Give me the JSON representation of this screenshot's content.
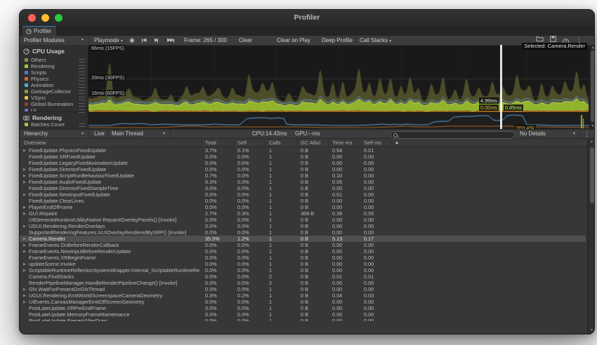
{
  "window": {
    "title": "Profiler"
  },
  "tab": {
    "label": "Profiler"
  },
  "toolbar": {
    "modules_dropdown": "Profiler Modules",
    "target_dropdown": "Playmode",
    "frame_info": "Frame: 265 / 300",
    "clear": "Clear",
    "clear_on_play": "Clear on Play",
    "deep_profile": "Deep Profile",
    "call_stacks": "Call Stacks"
  },
  "modules": {
    "cpu": {
      "title": "CPU Usage",
      "legend": [
        {
          "label": "Others",
          "color": "#8f8f4b"
        },
        {
          "label": "Rendering",
          "color": "#a7c63b"
        },
        {
          "label": "Scripts",
          "color": "#4c7dbf"
        },
        {
          "label": "Physics",
          "color": "#d1682f"
        },
        {
          "label": "Animation",
          "color": "#51aedc"
        },
        {
          "label": "GarbageCollector",
          "color": "#96963f"
        },
        {
          "label": "VSync",
          "color": "#e3c34c"
        },
        {
          "label": "Global Illumination",
          "color": "#9e3c32"
        },
        {
          "label": "UI",
          "color": "#7b68c8"
        }
      ]
    },
    "rendering": {
      "title": "Rendering",
      "legend": [
        {
          "label": "Batches Count",
          "color": "#a7c63b"
        }
      ]
    }
  },
  "chart": {
    "grid_labels": [
      "66ms (15FPS)",
      "33ms (30FPS)",
      "16ms (60FPS)"
    ],
    "selected_label": "Selected: Camera.Render",
    "tooltip_total": "4.99ms",
    "tooltip_left": "0.00ms",
    "tooltip_right": "0.85ms",
    "render_value_label": "959.45k",
    "colors": {
      "others": "#4d4d2a",
      "rendering": "#92b42c",
      "rendering_edge": "#c9dd70",
      "physics": "#a35a24",
      "scripts": "#5fa0d8",
      "selection": "#ffffff"
    }
  },
  "hierarchy_bar": {
    "mode": "Hierarchy",
    "live": "Live",
    "thread": "Main Thread",
    "cpu_time": "CPU:14.43ms",
    "gpu_time": "GPU:--ms",
    "details": "No Details",
    "search_value": ""
  },
  "table": {
    "columns": {
      "overview": "Overview",
      "total": "Total",
      "self": "Self",
      "calls": "Calls",
      "gc": "GC Alloc",
      "time": "Time ms",
      "selfms": "Self ms"
    },
    "rows": [
      {
        "name": "FixedUpdate.PhysicsFixedUpdate",
        "exp": true,
        "total": "3.7%",
        "self": "0.1%",
        "calls": "1",
        "gc": "0 B",
        "time": "0.54",
        "selfms": "0.01"
      },
      {
        "name": "FixedUpdate.XRFixedUpdate",
        "exp": false,
        "total": "0.0%",
        "self": "0.0%",
        "calls": "1",
        "gc": "0 B",
        "time": "0.00",
        "selfms": "0.00"
      },
      {
        "name": "FixedUpdate.LegacyFixedAnimationUpdate",
        "exp": false,
        "total": "0.0%",
        "self": "0.0%",
        "calls": "1",
        "gc": "0 B",
        "time": "0.00",
        "selfms": "0.00"
      },
      {
        "name": "FixedUpdate.DirectorFixedUpdate",
        "exp": true,
        "total": "0.0%",
        "self": "0.0%",
        "calls": "1",
        "gc": "0 B",
        "time": "0.00",
        "selfms": "0.00"
      },
      {
        "name": "FixedUpdate.ScriptRunBehaviourFixedUpdate",
        "exp": true,
        "total": "0.7%",
        "self": "0.0%",
        "calls": "1",
        "gc": "0 B",
        "time": "0.10",
        "selfms": "0.00"
      },
      {
        "name": "FixedUpdate.AudioFixedUpdate",
        "exp": true,
        "total": "0.3%",
        "self": "0.0%",
        "calls": "1",
        "gc": "0 B",
        "time": "0.05",
        "selfms": "0.00"
      },
      {
        "name": "FixedUpdate.DirectorFixedSampleTime",
        "exp": false,
        "total": "0.0%",
        "self": "0.0%",
        "calls": "1",
        "gc": "0 B",
        "time": "0.00",
        "selfms": "0.00"
      },
      {
        "name": "FixedUpdate.NewInputFixedUpdate",
        "exp": true,
        "total": "0.0%",
        "self": "0.0%",
        "calls": "1",
        "gc": "0 B",
        "time": "0.01",
        "selfms": "0.00"
      },
      {
        "name": "FixedUpdate.ClearLines",
        "exp": false,
        "total": "0.0%",
        "self": "0.0%",
        "calls": "1",
        "gc": "0 B",
        "time": "0.00",
        "selfms": "0.00"
      },
      {
        "name": "PlayerEndOfFrame",
        "exp": true,
        "total": "0.0%",
        "self": "0.0%",
        "calls": "1",
        "gc": "0 B",
        "time": "0.00",
        "selfms": "0.00"
      },
      {
        "name": "GUI.Repaint",
        "exp": true,
        "total": "2.7%",
        "self": "0.3%",
        "calls": "1",
        "gc": "368 B",
        "time": "0.39",
        "selfms": "0.05"
      },
      {
        "name": "UIElementsRuntimeUtilityNative.RepaintOverlayPanels() [Invoke]",
        "exp": false,
        "total": "0.0%",
        "self": "0.0%",
        "calls": "1",
        "gc": "0 B",
        "time": "0.00",
        "selfms": "0.00"
      },
      {
        "name": "UGUI.Rendering.RenderOverlays",
        "exp": true,
        "total": "0.0%",
        "self": "0.0%",
        "calls": "1",
        "gc": "0 B",
        "time": "0.00",
        "selfms": "0.00"
      },
      {
        "name": "SupportedRenderingFeatures.IsUIOverlayRenderedBySRP() [Invoke]",
        "exp": false,
        "total": "0.0%",
        "self": "0.0%",
        "calls": "1",
        "gc": "0 B",
        "time": "0.00",
        "selfms": "0.00"
      },
      {
        "name": "Camera.Render",
        "exp": true,
        "selected": true,
        "total": "35.5%",
        "self": "1.2%",
        "calls": "1",
        "gc": "0 B",
        "time": "5.13",
        "selfms": "0.17"
      },
      {
        "name": "FrameEvents.OnBeforeRenderCallback",
        "exp": true,
        "total": "0.0%",
        "self": "0.0%",
        "calls": "1",
        "gc": "0 B",
        "time": "0.00",
        "selfms": "0.00"
      },
      {
        "name": "FrameEvents.NewInputBeforeRenderUpdate",
        "exp": true,
        "total": "0.0%",
        "self": "0.0%",
        "calls": "1",
        "gc": "0 B",
        "time": "0.00",
        "selfms": "0.00"
      },
      {
        "name": "FrameEvents.XRBeginFrame",
        "exp": false,
        "total": "0.0%",
        "self": "0.0%",
        "calls": "1",
        "gc": "0 B",
        "time": "0.00",
        "selfms": "0.00"
      },
      {
        "name": "updateScene.Invoke",
        "exp": true,
        "total": "0.0%",
        "self": "0.0%",
        "calls": "1",
        "gc": "0 B",
        "time": "0.00",
        "selfms": "0.00"
      },
      {
        "name": "ScriptableRuntimeReflectionSystemWrapper.Internal_ScriptableRuntimeRe",
        "exp": true,
        "total": "0.0%",
        "self": "0.0%",
        "calls": "1",
        "gc": "0 B",
        "time": "0.00",
        "selfms": "0.00"
      },
      {
        "name": "Camera.FindStacks",
        "exp": false,
        "total": "0.0%",
        "self": "0.0%",
        "calls": "2",
        "gc": "0 B",
        "time": "0.01",
        "selfms": "0.01"
      },
      {
        "name": "RenderPipelineManager.HandleRenderPipelineChange() [Invoke]",
        "exp": false,
        "total": "0.0%",
        "self": "0.0%",
        "calls": "2",
        "gc": "0 B",
        "time": "0.00",
        "selfms": "0.00"
      },
      {
        "name": "Gfx.WaitForPresentOnGfxThread",
        "exp": true,
        "total": "0.0%",
        "self": "0.0%",
        "calls": "1",
        "gc": "0 B",
        "time": "0.00",
        "selfms": "0.00"
      },
      {
        "name": "UGUI.Rendering.EmitWorldScreenspaceCameraGeometry",
        "exp": true,
        "total": "0.3%",
        "self": "0.2%",
        "calls": "1",
        "gc": "0 B",
        "time": "0.04",
        "selfms": "0.03"
      },
      {
        "name": "UIEvents.CanvasManagerEmitOffScreenGeometry",
        "exp": true,
        "total": "0.0%",
        "self": "0.0%",
        "calls": "1",
        "gc": "0 B",
        "time": "0.00",
        "selfms": "0.00"
      },
      {
        "name": "PostLateUpdate.XRPreEndFrame",
        "exp": false,
        "total": "0.0%",
        "self": "0.0%",
        "calls": "1",
        "gc": "0 B",
        "time": "0.00",
        "selfms": "0.00"
      },
      {
        "name": "PostLateUpdate.MemoryFrameMaintenance",
        "exp": false,
        "total": "0.0%",
        "self": "0.0%",
        "calls": "1",
        "gc": "0 B",
        "time": "0.00",
        "selfms": "0.00"
      },
      {
        "name": "PostLateUpdate.PresentAfterDraw",
        "exp": false,
        "total": "0.0%",
        "self": "0.0%",
        "calls": "1",
        "gc": "0 B",
        "time": "0.00",
        "selfms": "0.00"
      }
    ]
  },
  "icons": {
    "dropdown": "▾",
    "record": "◉",
    "prev": "◀",
    "next": "▶",
    "last": "▶▶",
    "kebab": "⋮",
    "help": "?",
    "warning": "▲",
    "scroll_up": "▲",
    "scroll_down": "▼",
    "disclosure": "▶"
  }
}
